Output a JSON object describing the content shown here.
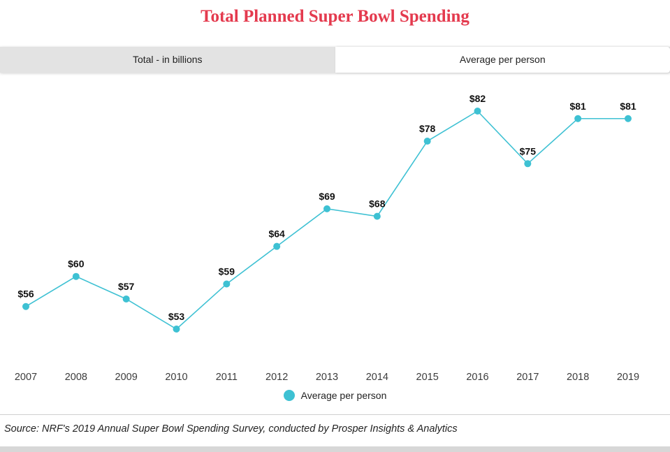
{
  "title": "Total Planned Super Bowl Spending",
  "tabs": [
    {
      "label": "Total - in billions",
      "active": false
    },
    {
      "label": "Average per person",
      "active": true
    }
  ],
  "legend": {
    "label": "Average per person"
  },
  "source": "Source: NRF's 2019 Annual Super Bowl Spending Survey, conducted by Prosper Insights & Analytics",
  "colors": {
    "accent": "#3ec1d3",
    "title": "#e43a4e",
    "tab_inactive_bg": "#e3e3e3",
    "data_label": "#111111",
    "axis_label": "#3c3c3c"
  },
  "chart_data": {
    "type": "line",
    "categories": [
      "2007",
      "2008",
      "2009",
      "2010",
      "2011",
      "2012",
      "2013",
      "2014",
      "2015",
      "2016",
      "2017",
      "2018",
      "2019"
    ],
    "series": [
      {
        "name": "Average per person",
        "values": [
          56,
          60,
          57,
          53,
          59,
          64,
          69,
          68,
          78,
          82,
          75,
          81,
          81
        ]
      }
    ],
    "value_prefix": "$",
    "data_labels": [
      "$56",
      "$60",
      "$57",
      "$53",
      "$59",
      "$64",
      "$69",
      "$68",
      "$78",
      "$82",
      "$75",
      "$81",
      "$81"
    ],
    "title": "Total Planned Super Bowl Spending",
    "xlabel": "",
    "ylabel": "",
    "ylim": [
      53,
      82
    ],
    "grid": false,
    "legend_position": "bottom",
    "marker": "circle"
  }
}
